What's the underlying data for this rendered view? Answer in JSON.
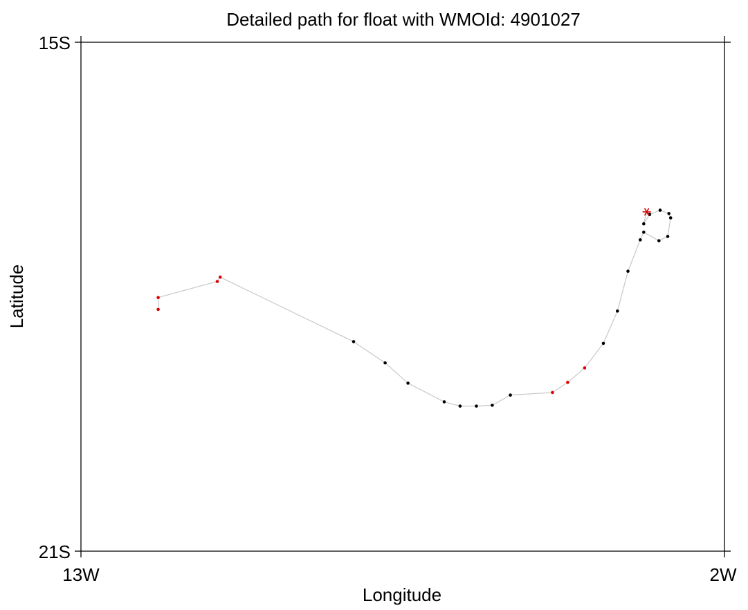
{
  "chart_data": {
    "type": "scatter",
    "title": "Detailed path for float with WMOId: 4901027",
    "xlabel": "Longitude",
    "ylabel": "Latitude",
    "xlim": [
      -13,
      -2
    ],
    "ylim": [
      -21,
      -15
    ],
    "x_ticks": [
      {
        "value": -13,
        "label": "13W"
      },
      {
        "value": -2,
        "label": "2W"
      }
    ],
    "y_ticks": [
      {
        "value": -15,
        "label": "15S"
      },
      {
        "value": -21,
        "label": "21S"
      }
    ],
    "grid": false,
    "path": [
      {
        "lon": -11.68,
        "lat": -18.15,
        "flag": "red"
      },
      {
        "lon": -11.68,
        "lat": -18.01,
        "flag": "red"
      },
      {
        "lon": -10.67,
        "lat": -17.82,
        "flag": "red"
      },
      {
        "lon": -10.62,
        "lat": -17.77,
        "flag": "red"
      },
      {
        "lon": -8.34,
        "lat": -18.53,
        "flag": "black"
      },
      {
        "lon": -7.8,
        "lat": -18.78,
        "flag": "black"
      },
      {
        "lon": -7.41,
        "lat": -19.02,
        "flag": "black"
      },
      {
        "lon": -6.79,
        "lat": -19.24,
        "flag": "black"
      },
      {
        "lon": -6.52,
        "lat": -19.29,
        "flag": "black"
      },
      {
        "lon": -6.24,
        "lat": -19.29,
        "flag": "black"
      },
      {
        "lon": -5.97,
        "lat": -19.28,
        "flag": "black"
      },
      {
        "lon": -5.66,
        "lat": -19.16,
        "flag": "black"
      },
      {
        "lon": -4.94,
        "lat": -19.13,
        "flag": "red"
      },
      {
        "lon": -4.68,
        "lat": -19.01,
        "flag": "red"
      },
      {
        "lon": -4.39,
        "lat": -18.84,
        "flag": "red"
      },
      {
        "lon": -4.07,
        "lat": -18.55,
        "flag": "black"
      },
      {
        "lon": -3.83,
        "lat": -18.17,
        "flag": "black"
      },
      {
        "lon": -3.65,
        "lat": -17.7,
        "flag": "black"
      },
      {
        "lon": -3.44,
        "lat": -17.33,
        "flag": "black"
      },
      {
        "lon": -3.38,
        "lat": -17.24,
        "flag": "black"
      },
      {
        "lon": -3.12,
        "lat": -17.34,
        "flag": "black"
      },
      {
        "lon": -2.97,
        "lat": -17.29,
        "flag": "black"
      },
      {
        "lon": -2.92,
        "lat": -17.07,
        "flag": "black"
      },
      {
        "lon": -2.95,
        "lat": -17.02,
        "flag": "black"
      },
      {
        "lon": -3.1,
        "lat": -16.98,
        "flag": "black"
      },
      {
        "lon": -3.28,
        "lat": -17.03,
        "flag": "black"
      },
      {
        "lon": -3.38,
        "lat": -17.14,
        "flag": "black"
      },
      {
        "lon": -3.33,
        "lat": -17.0,
        "flag": "current"
      }
    ],
    "colors": {
      "track": "#c8c8c8",
      "black_point": "#000000",
      "red_point": "#dd0000",
      "current_marker": "#dd0000"
    }
  }
}
